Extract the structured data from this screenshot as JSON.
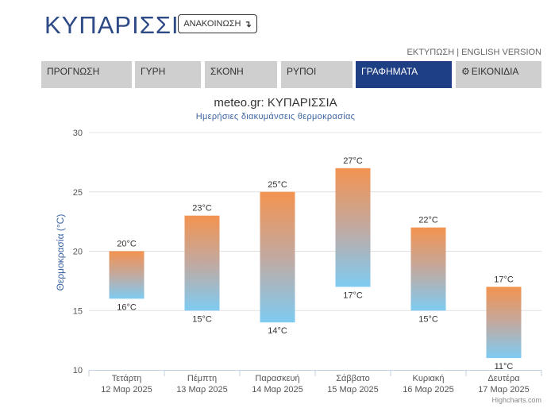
{
  "header": {
    "title": "ΚΥΠΑΡΙΣΣΙΑ",
    "announce_label": "ΑΝΑΚΟΙΝΩΣΗ",
    "announce_icon": "arrow-down-hook-icon"
  },
  "toplinks": {
    "print": "ΕΚΤΥΠΩΣΗ",
    "separator": " | ",
    "english": "ENGLISH VERSION"
  },
  "tabs": [
    {
      "label": "ΠΡΟΓΝΩΣΗ",
      "active": false
    },
    {
      "label": "ΓΥΡΗ",
      "active": false
    },
    {
      "label": "ΣΚΟΝΗ",
      "active": false
    },
    {
      "label": "ΡΥΠΟΙ",
      "active": false
    },
    {
      "label": "ΓΡΑΦΗΜΑΤΑ",
      "active": true
    },
    {
      "label": "ΕΙΚΟΝΙΔΙΑ",
      "active": false,
      "icon": "gear-icon"
    }
  ],
  "colors": {
    "brand": "#2d4a86",
    "active_tab": "#1f3f85",
    "bar_top": "#f39350",
    "bar_bottom": "#7ecbf2"
  },
  "chart_data": {
    "type": "bar",
    "subtype": "columnrange",
    "title": "meteo.gr: ΚΥΠΑΡΙΣΣΙΑ",
    "subtitle": "Ημερήσιες διακυμάνσεις θερμοκρασίας",
    "ylabel": "Θερμοκρασία (°C)",
    "xlabel": "",
    "ylim": [
      10,
      30
    ],
    "yticks": [
      "10",
      "15",
      "20",
      "25",
      "30"
    ],
    "grid": true,
    "categories": [
      {
        "day": "Τετάρτη",
        "date": "12 Μαρ 2025"
      },
      {
        "day": "Πέμπτη",
        "date": "13 Μαρ 2025"
      },
      {
        "day": "Παρασκευή",
        "date": "14 Μαρ 2025"
      },
      {
        "day": "Σάββατο",
        "date": "15 Μαρ 2025"
      },
      {
        "day": "Κυριακή",
        "date": "16 Μαρ 2025"
      },
      {
        "day": "Δευτέρα",
        "date": "17 Μαρ 2025"
      }
    ],
    "series": [
      {
        "low": 16,
        "high": 20
      },
      {
        "low": 15,
        "high": 23
      },
      {
        "low": 14,
        "high": 25
      },
      {
        "low": 17,
        "high": 27
      },
      {
        "low": 15,
        "high": 22
      },
      {
        "low": 11,
        "high": 17
      }
    ],
    "unit": "°C",
    "credits": "Highcharts.com"
  }
}
